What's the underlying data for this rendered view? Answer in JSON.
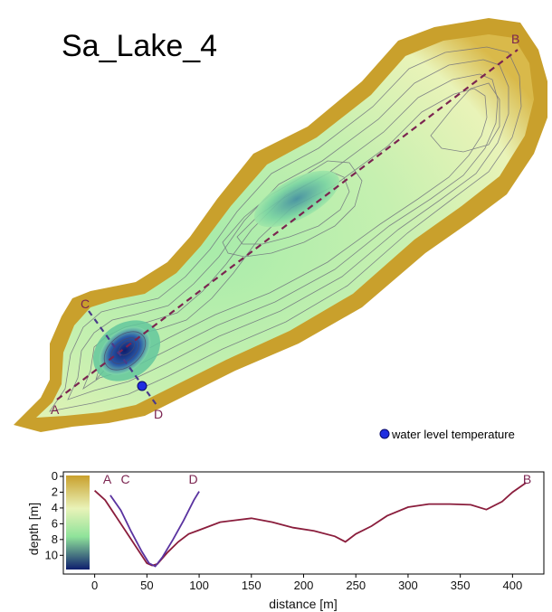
{
  "map": {
    "title": "Sa_Lake_4",
    "legend": {
      "label": "water level temperature",
      "color": "#1f2de0"
    },
    "stations": [
      "A",
      "B",
      "C",
      "D"
    ],
    "colors": {
      "shore": "#c9a02c",
      "shallow": "#e9f3b8",
      "mid": "#8fe39a",
      "deep": "#0e1e6e",
      "transect": "#7b2450"
    }
  },
  "chart_data": {
    "type": "line",
    "ylabel": "depth [m]",
    "xlabel": "distance [m]",
    "xlim": [
      -30,
      430
    ],
    "ylim": [
      12,
      0
    ],
    "xticks": [
      0,
      50,
      100,
      150,
      200,
      250,
      300,
      350,
      400
    ],
    "yticks": [
      0,
      2,
      4,
      6,
      8,
      10
    ],
    "series": [
      {
        "name": "A-B",
        "color": "#8a1d3c",
        "x": [
          0,
          10,
          20,
          30,
          40,
          50,
          55,
          60,
          70,
          80,
          90,
          100,
          120,
          150,
          170,
          190,
          210,
          230,
          240,
          250,
          265,
          280,
          300,
          320,
          340,
          360,
          375,
          390,
          400,
          413
        ],
        "y": [
          1.8,
          3.0,
          5.0,
          7.0,
          9.0,
          11.0,
          11.3,
          11.1,
          9.6,
          8.3,
          7.3,
          6.8,
          5.8,
          5.3,
          5.8,
          6.5,
          6.9,
          7.6,
          8.3,
          7.3,
          6.3,
          5.0,
          3.9,
          3.5,
          3.5,
          3.6,
          4.2,
          3.2,
          2.0,
          0.8
        ]
      },
      {
        "name": "C-D",
        "color": "#5a33a0",
        "x": [
          15,
          25,
          35,
          45,
          52,
          58,
          65,
          75,
          85,
          95,
          100
        ],
        "y": [
          2.4,
          4.3,
          7.0,
          9.5,
          11.0,
          11.4,
          10.2,
          8.0,
          5.6,
          3.0,
          1.9
        ]
      }
    ],
    "annotations": [
      {
        "text": "A",
        "x": 8
      },
      {
        "text": "C",
        "x": 25
      },
      {
        "text": "D",
        "x": 90
      },
      {
        "text": "B",
        "x": 410
      }
    ],
    "colorbar": {
      "colors": [
        "#c9a02c",
        "#e9f3b8",
        "#8fe39a",
        "#0e1e6e"
      ]
    }
  }
}
